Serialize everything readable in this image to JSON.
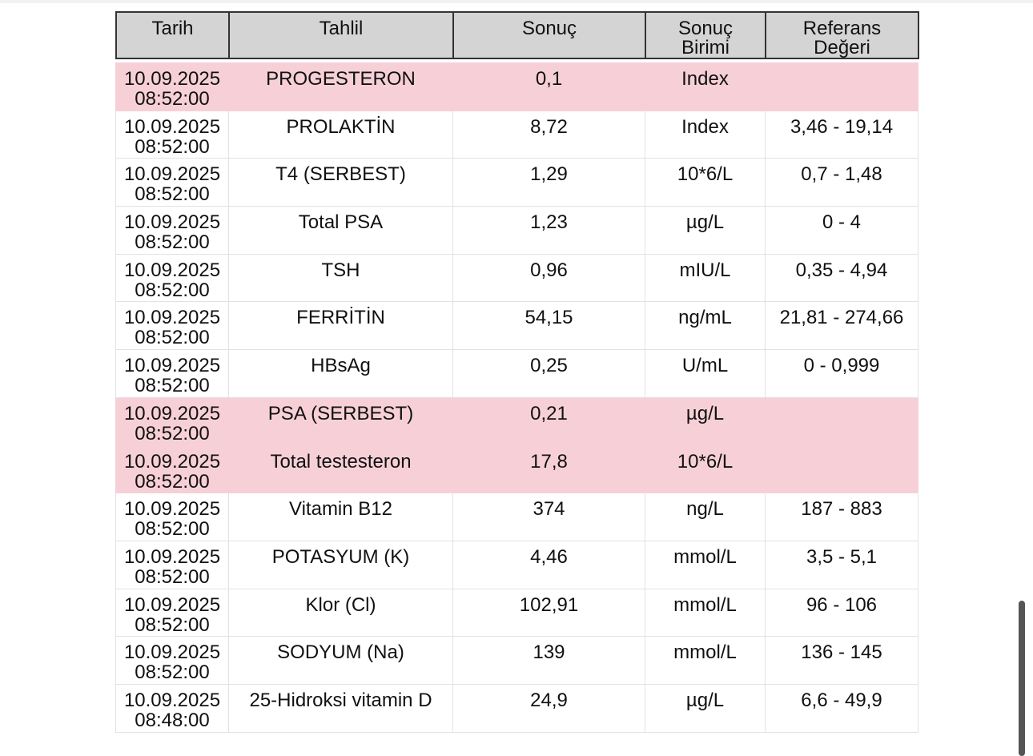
{
  "table": {
    "header": [
      "Tarih",
      "Tahlil",
      "Sonuç",
      "Sonuç\nBirimi",
      "Referans\nDeğeri"
    ],
    "rows": [
      {
        "cells": [
          "10.09.2025\n08:52:00",
          "PROGESTERON",
          "0,1",
          "Index",
          ""
        ],
        "highlight": true
      },
      {
        "cells": [
          "10.09.2025\n08:52:00",
          "PROLAKTİN",
          "8,72",
          "Index",
          "3,46 - 19,14"
        ]
      },
      {
        "cells": [
          "10.09.2025\n08:52:00",
          "T4  (SERBEST)",
          "1,29",
          "10*6/L",
          "0,7 - 1,48"
        ]
      },
      {
        "cells": [
          "10.09.2025\n08:52:00",
          "Total PSA",
          "1,23",
          "µg/L",
          "0 - 4"
        ]
      },
      {
        "cells": [
          "10.09.2025\n08:52:00",
          "TSH",
          "0,96",
          "mIU/L",
          "0,35 - 4,94"
        ]
      },
      {
        "cells": [
          "10.09.2025\n08:52:00",
          "FERRİTİN",
          "54,15",
          "ng/mL",
          "21,81 - 274,66"
        ]
      },
      {
        "cells": [
          "10.09.2025\n08:52:00",
          "HBsAg",
          "0,25",
          "U/mL",
          "0 - 0,999"
        ]
      },
      {
        "cells": [
          "10.09.2025\n08:52:00",
          "PSA (SERBEST)",
          "0,21",
          "µg/L",
          ""
        ],
        "highlight": true
      },
      {
        "cells": [
          "10.09.2025\n08:52:00",
          "Total testesteron",
          "17,8",
          "10*6/L",
          ""
        ],
        "highlight": true
      },
      {
        "cells": [
          "10.09.2025\n08:52:00",
          "Vitamin B12",
          "374",
          "ng/L",
          "187 - 883"
        ]
      },
      {
        "cells": [
          "10.09.2025\n08:52:00",
          "POTASYUM (K)",
          "4,46",
          "mmol/L",
          "3,5 - 5,1"
        ]
      },
      {
        "cells": [
          "10.09.2025\n08:52:00",
          "Klor (Cl)",
          "102,91",
          "mmol/L",
          "96 - 106"
        ]
      },
      {
        "cells": [
          "10.09.2025\n08:52:00",
          "SODYUM  (Na)",
          "139",
          "mmol/L",
          "136 - 145"
        ]
      },
      {
        "cells": [
          "10.09.2025\n08:48:00",
          "25-Hidroksi vitamin D",
          "24,9",
          "µg/L",
          "6,6 - 49,9"
        ]
      }
    ]
  }
}
